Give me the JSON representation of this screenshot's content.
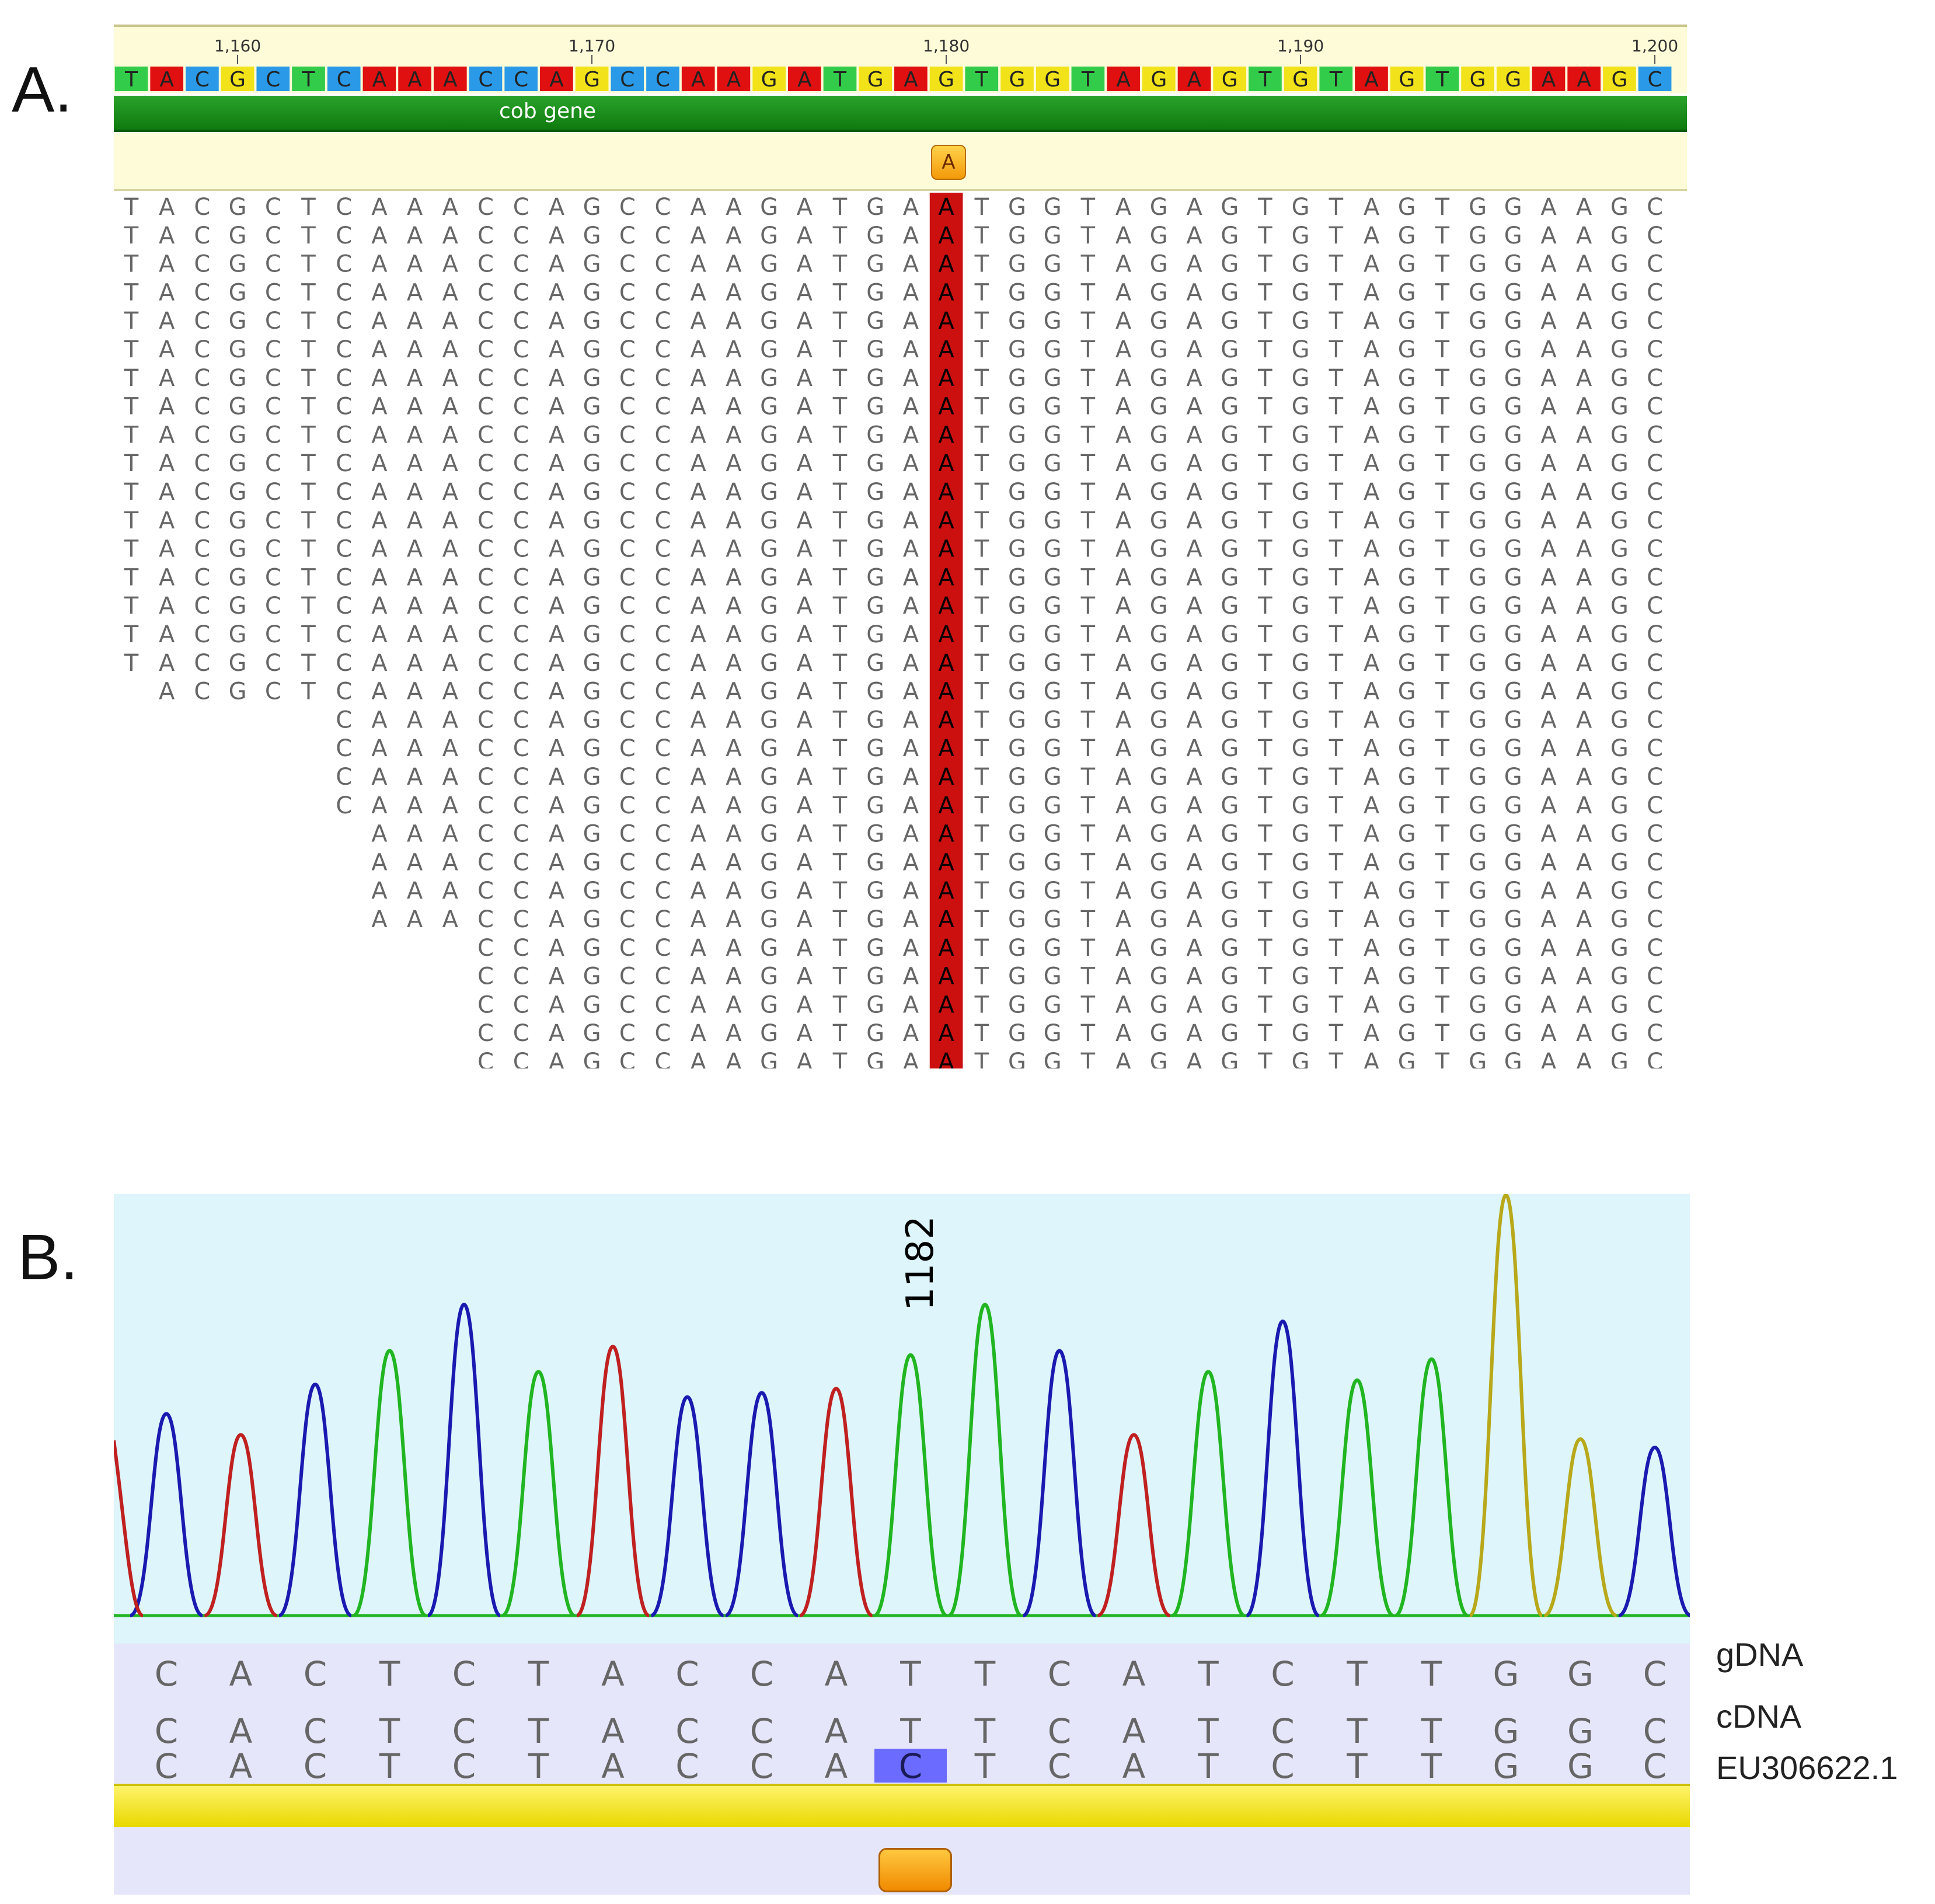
{
  "panel_a": {
    "letter": "A.",
    "ruler_ticks": [
      "1,160",
      "1,170",
      "1,180",
      "1,190",
      "1,200"
    ],
    "reference_sequence": "TACGCTCAAACCAGCCAAGATGAGTGGTAGAGTGTAGTGGAAGC",
    "gene_label": "cob gene",
    "variant_base": "A",
    "colors": {
      "A": "#e01010",
      "C": "#2a9ae8",
      "G": "#f2e21a",
      "T": "#33cc4a"
    },
    "variant_highlight": "#cc1010",
    "reads": [
      {
        "start": 0,
        "seq": "TACGCTCAAACCAGCCAAGATGAATGGTAGAGTGTAGTGGAAGC"
      },
      {
        "start": 0,
        "seq": "TACGCTCAAACCAGCCAAGATGAATGGTAGAGTGTAGTGGAAGC"
      },
      {
        "start": 0,
        "seq": "TACGCTCAAACCAGCCAAGATGAATGGTAGAGTGTAGTGGAAGC"
      },
      {
        "start": 0,
        "seq": "TACGCTCAAACCAGCCAAGATGAATGGTAGAGTGTAGTGGAAGC"
      },
      {
        "start": 0,
        "seq": "TACGCTCAAACCAGCCAAGATGAATGGTAGAGTGTAGTGGAAGC"
      },
      {
        "start": 0,
        "seq": "TACGCTCAAACCAGCCAAGATGAATGGTAGAGTGTAGTGGAAGC"
      },
      {
        "start": 0,
        "seq": "TACGCTCAAACCAGCCAAGATGAATGGTAGAGTGTAGTGGAAGC"
      },
      {
        "start": 0,
        "seq": "TACGCTCAAACCAGCCAAGATGAATGGTAGAGTGTAGTGGAAGC"
      },
      {
        "start": 0,
        "seq": "TACGCTCAAACCAGCCAAGATGAATGGTAGAGTGTAGTGGAAGC"
      },
      {
        "start": 0,
        "seq": "TACGCTCAAACCAGCCAAGATGAATGGTAGAGTGTAGTGGAAGC"
      },
      {
        "start": 0,
        "seq": "TACGCTCAAACCAGCCAAGATGAATGGTAGAGTGTAGTGGAAGC"
      },
      {
        "start": 0,
        "seq": "TACGCTCAAACCAGCCAAGATGAATGGTAGAGTGTAGTGGAAGC"
      },
      {
        "start": 0,
        "seq": "TACGCTCAAACCAGCCAAGATGAATGGTAGAGTGTAGTGGAAGC"
      },
      {
        "start": 0,
        "seq": "TACGCTCAAACCAGCCAAGATGAATGGTAGAGTGTAGTGGAAGC"
      },
      {
        "start": 0,
        "seq": "TACGCTCAAACCAGCCAAGATGAATGGTAGAGTGTAGTGGAAGC"
      },
      {
        "start": 0,
        "seq": "TACGCTCAAACCAGCCAAGATGAATGGTAGAGTGTAGTGGAAGC"
      },
      {
        "start": 0,
        "seq": "TACGCTCAAACCAGCCAAGATGAATGGTAGAGTGTAGTGGAAGC"
      },
      {
        "start": 1,
        "seq": "ACGCTCAAACCAGCCAAGATGAATGGTAGAGTGTAGTGGAAGC"
      },
      {
        "start": 6,
        "seq": "CAAACCAGCCAAGATGAATGGTAGAGTGTAGTGGAAGC"
      },
      {
        "start": 6,
        "seq": "CAAACCAGCCAAGATGAATGGTAGAGTGTAGTGGAAGC"
      },
      {
        "start": 6,
        "seq": "CAAACCAGCCAAGATGAATGGTAGAGTGTAGTGGAAGC"
      },
      {
        "start": 6,
        "seq": "CAAACCAGCCAAGATGAATGGTAGAGTGTAGTGGAAGC"
      },
      {
        "start": 7,
        "seq": "AAACCAGCCAAGATGAATGGTAGAGTGTAGTGGAAGC"
      },
      {
        "start": 7,
        "seq": "AAACCAGCCAAGATGAATGGTAGAGTGTAGTGGAAGC"
      },
      {
        "start": 7,
        "seq": "AAACCAGCCAAGATGAATGGTAGAGTGTAGTGGAAGC"
      },
      {
        "start": 7,
        "seq": "AAACCAGCCAAGATGAATGGTAGAGTGTAGTGGAAGC"
      },
      {
        "start": 10,
        "seq": "CCAGCCAAGATGAATGGTAGAGTGTAGTGGAAGC"
      },
      {
        "start": 10,
        "seq": "CCAGCCAAGATGAATGGTAGAGTGTAGTGGAAGC"
      },
      {
        "start": 10,
        "seq": "CCAGCCAAGATGAATGGTAGAGTGTAGTGGAAGC"
      },
      {
        "start": 10,
        "seq": "CCAGCCAAGATGAATGGTAGAGTGTAGTGGAAGC"
      },
      {
        "start": 10,
        "seq": "CCAGCCAAGATGAATGGTAGAGTGTAGTGGAAGC"
      }
    ]
  },
  "panel_b": {
    "letter": "B.",
    "position_label": "1182",
    "row_labels": [
      "gDNA",
      "cDNA",
      "EU306622.1"
    ],
    "gdna": "CACTCTACCATTCATCTTGGC",
    "cdna": "CACTCTACCATTCATCTTGGC",
    "reference": "CACTCTACCACTCATCTTGGC",
    "mismatch_base": "C",
    "mismatch_color": "#6b6bff",
    "trace_colors": {
      "A": "#22b522",
      "C": "#1a1ab0",
      "G": "#b8a81a",
      "T": "#c02020"
    },
    "peaks": [
      {
        "base": "C",
        "height": 0.48
      },
      {
        "base": "T",
        "height": 0.43
      },
      {
        "base": "C",
        "height": 0.55
      },
      {
        "base": "A",
        "height": 0.63
      },
      {
        "base": "C",
        "height": 0.74
      },
      {
        "base": "A",
        "height": 0.58
      },
      {
        "base": "T",
        "height": 0.64
      },
      {
        "base": "C",
        "height": 0.52
      },
      {
        "base": "C",
        "height": 0.53
      },
      {
        "base": "T",
        "height": 0.54
      },
      {
        "base": "A",
        "height": 0.62
      },
      {
        "base": "A",
        "height": 0.74
      },
      {
        "base": "C",
        "height": 0.63
      },
      {
        "base": "T",
        "height": 0.43
      },
      {
        "base": "A",
        "height": 0.58
      },
      {
        "base": "C",
        "height": 0.7
      },
      {
        "base": "A",
        "height": 0.56
      },
      {
        "base": "A",
        "height": 0.61
      },
      {
        "base": "G",
        "height": 1.0
      },
      {
        "base": "G",
        "height": 0.42
      },
      {
        "base": "C",
        "height": 0.4
      }
    ]
  }
}
